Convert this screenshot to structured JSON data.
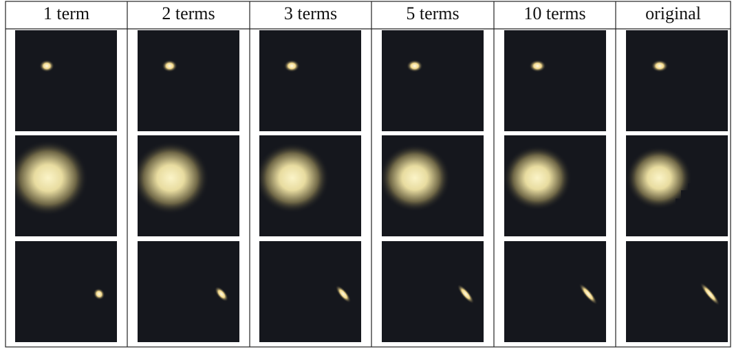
{
  "figure": {
    "headers": [
      "1 term",
      "2 terms",
      "3 terms",
      "5 terms",
      "10 terms",
      "original"
    ]
  }
}
